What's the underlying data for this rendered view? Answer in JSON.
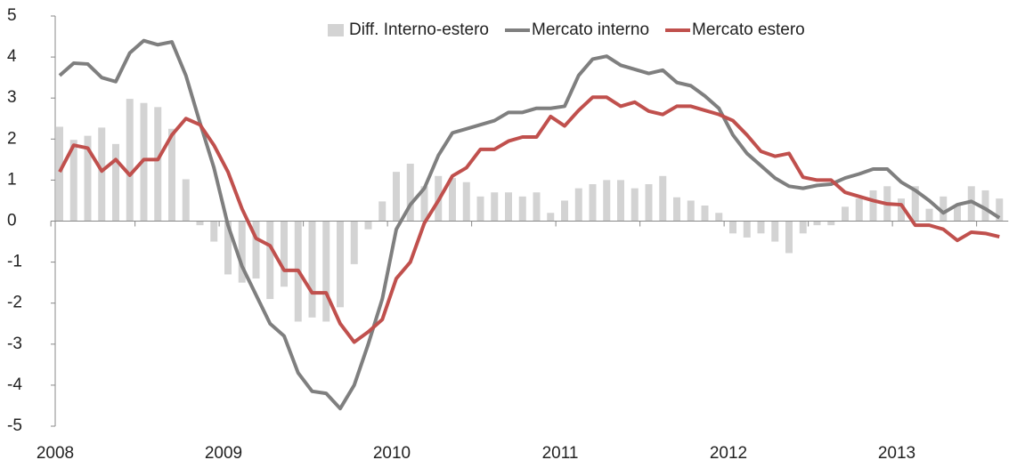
{
  "chart_data": {
    "type": "bar_line",
    "categories": [
      "2008",
      null,
      null,
      null,
      null,
      null,
      null,
      null,
      null,
      null,
      null,
      null,
      "2009",
      null,
      null,
      null,
      null,
      null,
      null,
      null,
      null,
      null,
      null,
      null,
      "2010",
      null,
      null,
      null,
      null,
      null,
      null,
      null,
      null,
      null,
      null,
      null,
      "2011",
      null,
      null,
      null,
      null,
      null,
      null,
      null,
      null,
      null,
      null,
      null,
      "2012",
      null,
      null,
      null,
      null,
      null,
      null,
      null,
      null,
      null,
      null,
      null,
      "2013",
      null,
      null,
      null,
      null,
      null,
      null,
      null
    ],
    "ylim": [
      -5,
      5
    ],
    "yticks": [
      -5,
      -4,
      -3,
      -2,
      -1,
      0,
      1,
      2,
      3,
      4,
      5
    ],
    "legend": "top-right",
    "series": [
      {
        "name": "Diff. Interno-estero",
        "kind": "bar",
        "color": "#d3d3d3",
        "values": [
          2.3,
          1.98,
          2.08,
          2.28,
          1.88,
          2.98,
          2.88,
          2.78,
          2.25,
          1.02,
          -0.1,
          -0.5,
          -1.3,
          -1.5,
          -1.4,
          -1.9,
          -1.6,
          -2.45,
          -2.35,
          -2.45,
          -2.1,
          -1.05,
          -0.2,
          0.48,
          1.2,
          1.4,
          0.85,
          1.1,
          1.05,
          0.95,
          0.6,
          0.7,
          0.7,
          0.6,
          0.7,
          0.2,
          0.5,
          0.8,
          0.9,
          1.0,
          1.0,
          0.8,
          0.9,
          1.1,
          0.58,
          0.5,
          0.38,
          0.2,
          -0.3,
          -0.4,
          -0.3,
          -0.5,
          -0.78,
          -0.3,
          -0.1,
          -0.1,
          0.35,
          0.55,
          0.75,
          0.85,
          0.55,
          0.85,
          0.3,
          0.6,
          0.4,
          0.85,
          0.75,
          0.55
        ]
      },
      {
        "name": "Mercato interno",
        "kind": "line",
        "color": "#7f7f7f",
        "values": [
          3.55,
          3.85,
          3.83,
          3.5,
          3.4,
          4.1,
          4.4,
          4.3,
          4.37,
          3.55,
          2.4,
          1.3,
          -0.1,
          -1.1,
          -1.8,
          -2.5,
          -2.8,
          -3.7,
          -4.15,
          -4.2,
          -4.57,
          -4.0,
          -3.0,
          -1.9,
          -0.2,
          0.4,
          0.8,
          1.6,
          2.15,
          2.25,
          2.35,
          2.45,
          2.65,
          2.65,
          2.75,
          2.75,
          2.8,
          3.55,
          3.95,
          4.02,
          3.8,
          3.7,
          3.6,
          3.68,
          3.38,
          3.3,
          3.05,
          2.75,
          2.1,
          1.65,
          1.35,
          1.05,
          0.85,
          0.8,
          0.87,
          0.9,
          1.05,
          1.15,
          1.27,
          1.27,
          0.95,
          0.75,
          0.5,
          0.2,
          0.4,
          0.48,
          0.3,
          0.08
        ]
      },
      {
        "name": "Mercato estero",
        "kind": "line",
        "color": "#c0504d",
        "values": [
          1.2,
          1.85,
          1.78,
          1.22,
          1.5,
          1.12,
          1.5,
          1.5,
          2.1,
          2.5,
          2.35,
          1.85,
          1.2,
          0.3,
          -0.42,
          -0.6,
          -1.2,
          -1.2,
          -1.75,
          -1.75,
          -2.5,
          -2.95,
          -2.7,
          -2.4,
          -1.4,
          -1.0,
          -0.05,
          0.5,
          1.1,
          1.3,
          1.75,
          1.75,
          1.95,
          2.05,
          2.05,
          2.55,
          2.32,
          2.7,
          3.02,
          3.02,
          2.8,
          2.9,
          2.68,
          2.6,
          2.8,
          2.8,
          2.7,
          2.6,
          2.45,
          2.1,
          1.7,
          1.58,
          1.65,
          1.07,
          1.0,
          1.0,
          0.7,
          0.6,
          0.5,
          0.42,
          0.4,
          -0.1,
          -0.1,
          -0.2,
          -0.47,
          -0.27,
          -0.3,
          -0.38
        ]
      }
    ]
  }
}
